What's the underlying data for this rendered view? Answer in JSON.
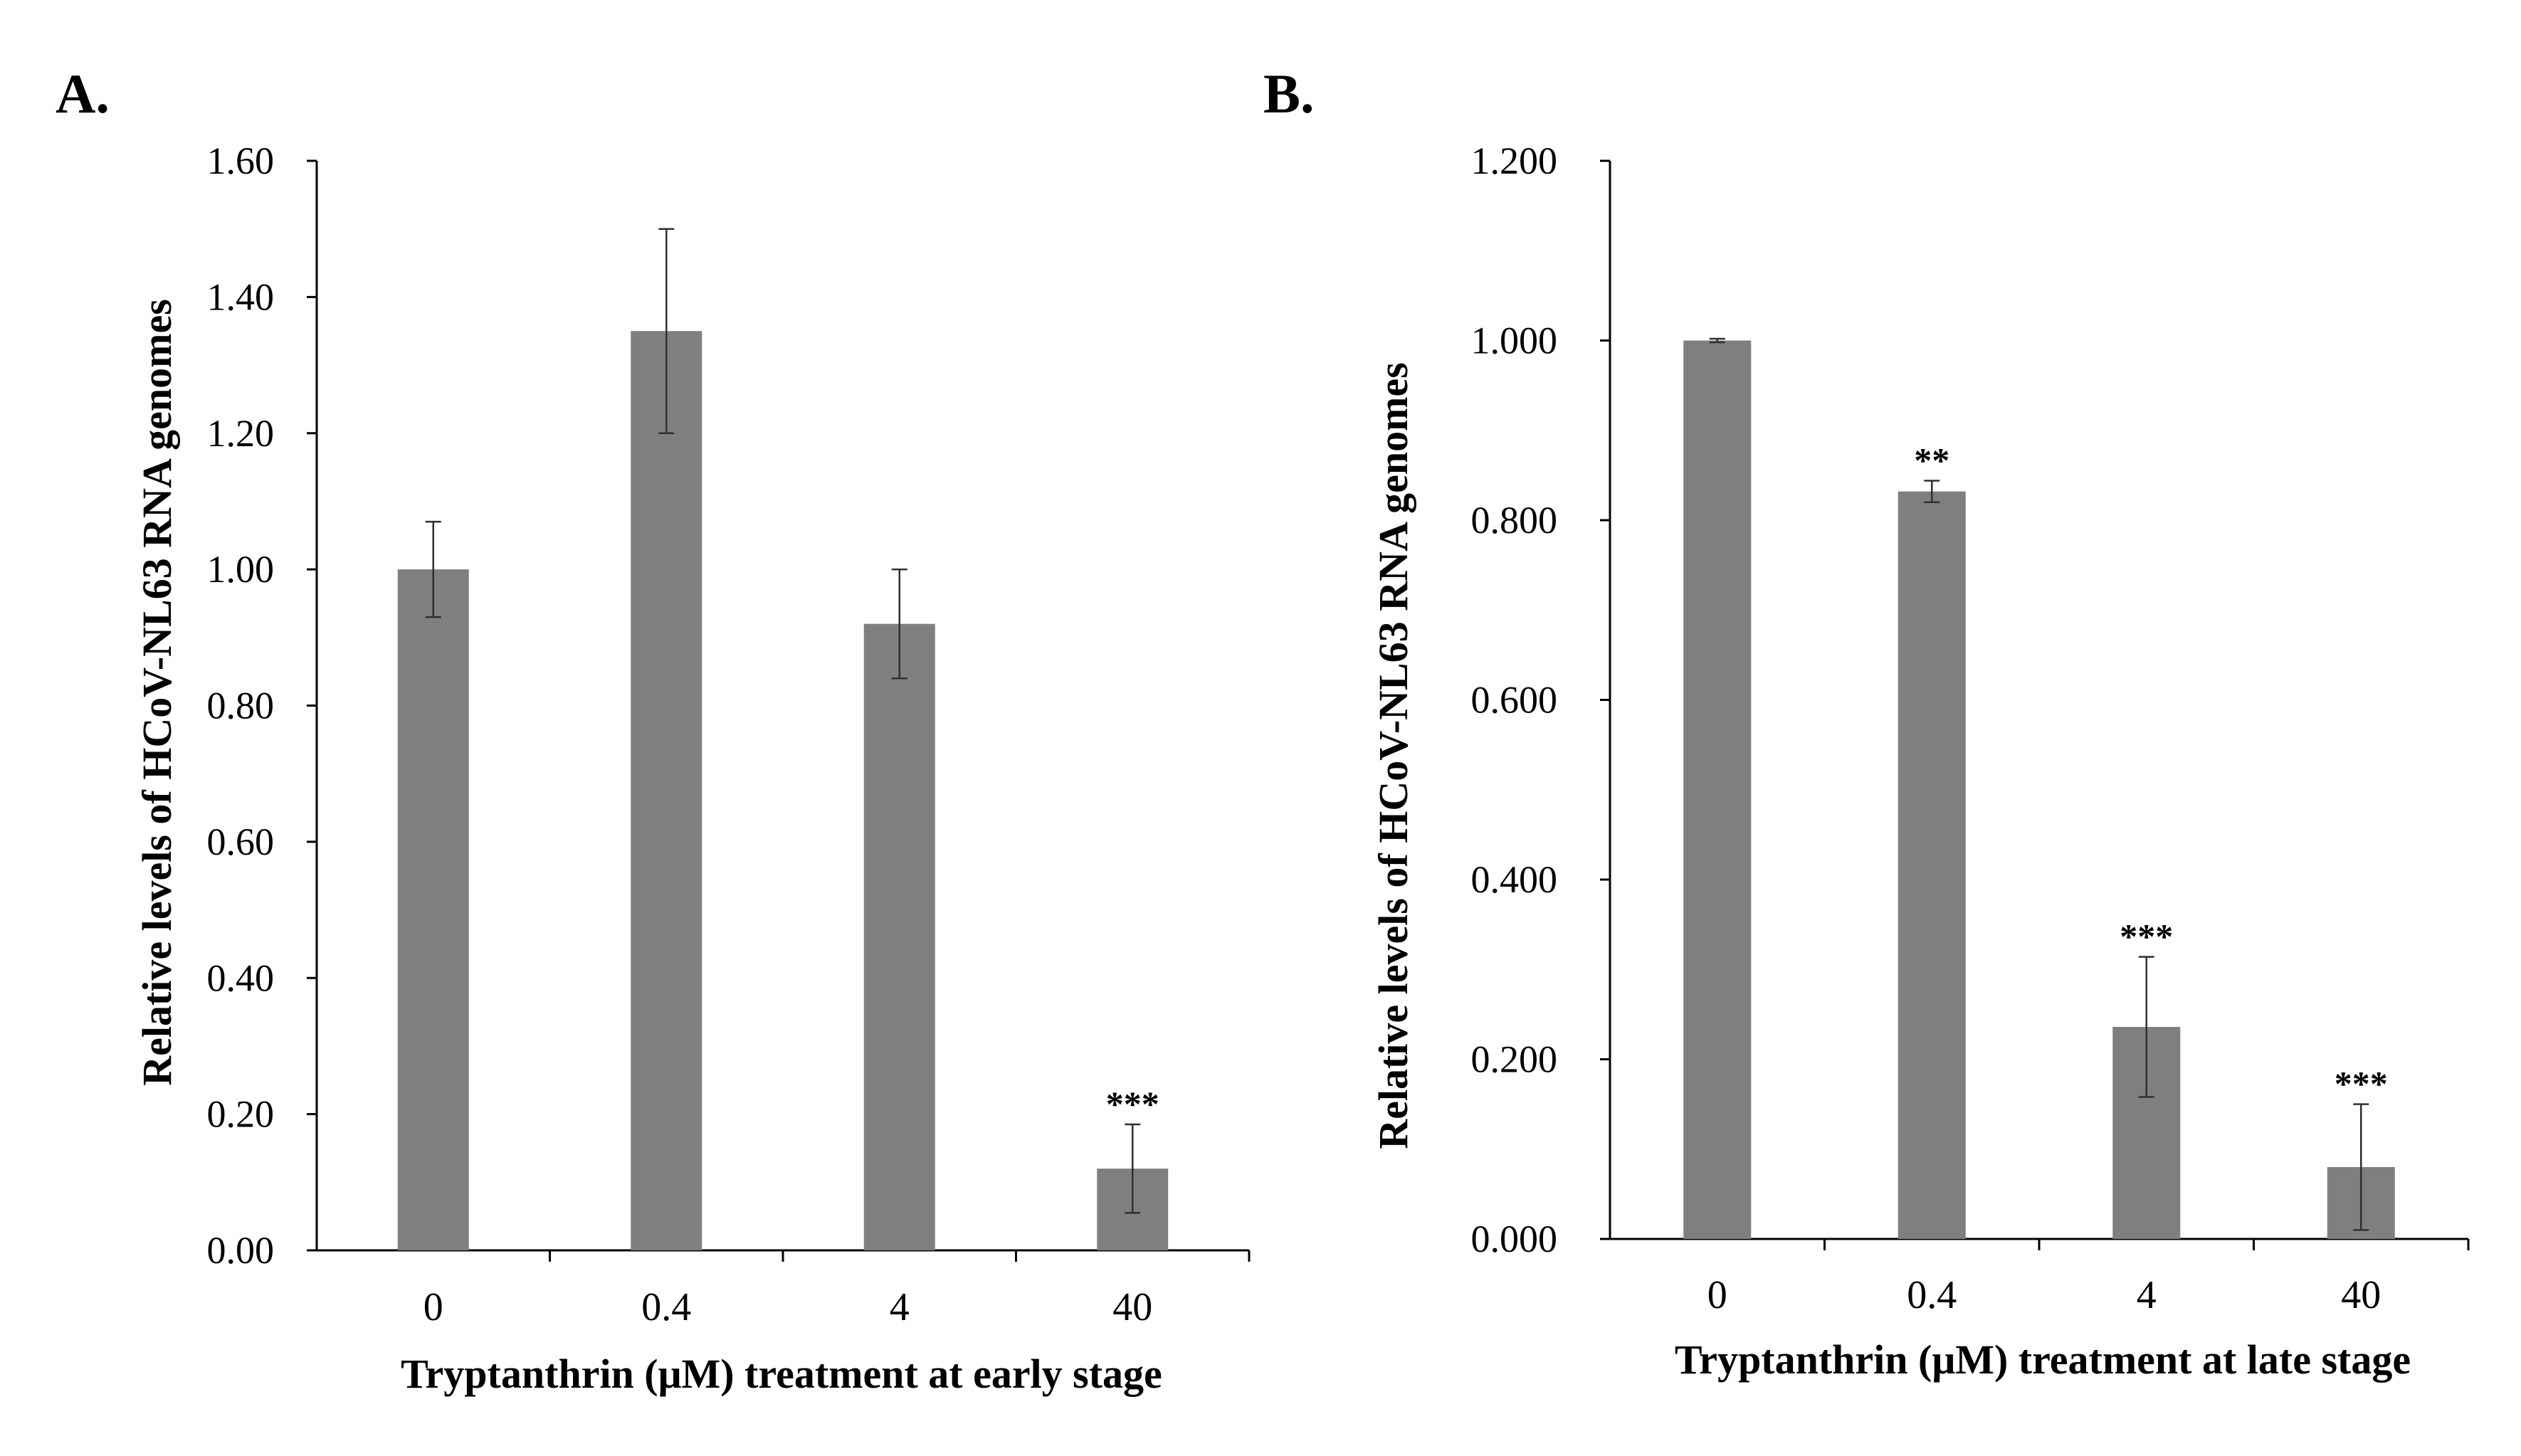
{
  "chart_data": [
    {
      "type": "bar",
      "panel_label": "A.",
      "categories": [
        "0",
        "0.4",
        "4",
        "40"
      ],
      "values": [
        1.0,
        1.35,
        0.92,
        0.12
      ],
      "errors": [
        0.07,
        0.15,
        0.08,
        0.065
      ],
      "significance": [
        "",
        "",
        "",
        "***"
      ],
      "xlabel": "Tryptanthrin (μM) treatment at early stage",
      "ylabel": "Relative levels of HCoV-NL63 RNA genomes",
      "ylim": [
        0,
        1.6
      ],
      "yticks": [
        "0.00",
        "0.20",
        "0.40",
        "0.60",
        "0.80",
        "1.00",
        "1.20",
        "1.40",
        "1.60"
      ],
      "bar_color": "#7f7f7f"
    },
    {
      "type": "bar",
      "panel_label": "B.",
      "categories": [
        "0",
        "0.4",
        "4",
        "40"
      ],
      "values": [
        1.0,
        0.832,
        0.236,
        0.08
      ],
      "errors": [
        0.002,
        0.012,
        0.078,
        0.07
      ],
      "significance": [
        "",
        "**",
        "***",
        "***"
      ],
      "xlabel": "Tryptanthrin (μM) treatment at late stage",
      "ylabel": "Relative levels of HCoV-NL63 RNA genomes",
      "ylim": [
        0,
        1.2
      ],
      "yticks": [
        "0.000",
        "0.200",
        "0.400",
        "0.600",
        "0.800",
        "1.000",
        "1.200"
      ],
      "bar_color": "#7f7f7f"
    }
  ]
}
